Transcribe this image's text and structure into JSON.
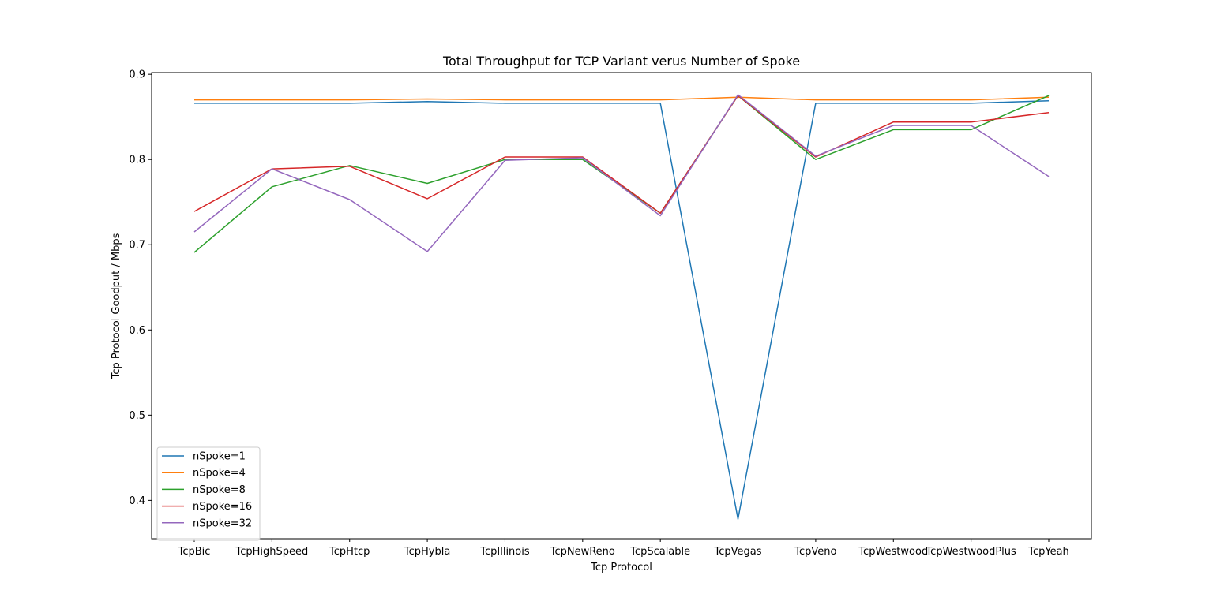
{
  "chart_data": {
    "type": "line",
    "title": "Total Throughput for TCP Variant verus Number of Spoke",
    "xlabel": "Tcp Protocol",
    "ylabel": "Tcp Protocol Goodput / Mbps",
    "categories": [
      "TcpBic",
      "TcpHighSpeed",
      "TcpHtcp",
      "TcpHybla",
      "TcpIllinois",
      "TcpNewReno",
      "TcpScalable",
      "TcpVegas",
      "TcpVeno",
      "TcpWestwood",
      "TcpWestwoodPlus",
      "TcpYeah"
    ],
    "ylim": [
      0.355,
      0.902
    ],
    "yticks": [
      0.4,
      0.5,
      0.6,
      0.7,
      0.8,
      0.9
    ],
    "ytick_labels": [
      "0.4",
      "0.5",
      "0.6",
      "0.7",
      "0.8",
      "0.9"
    ],
    "grid": false,
    "legend_position": "lower-left",
    "series": [
      {
        "name": "nSpoke=1",
        "color": "#1f77b4",
        "values": [
          0.866,
          0.866,
          0.866,
          0.868,
          0.866,
          0.866,
          0.866,
          0.378,
          0.866,
          0.866,
          0.866,
          0.869
        ]
      },
      {
        "name": "nSpoke=4",
        "color": "#ff7f0e",
        "values": [
          0.87,
          0.87,
          0.87,
          0.871,
          0.87,
          0.87,
          0.87,
          0.873,
          0.87,
          0.87,
          0.87,
          0.873
        ]
      },
      {
        "name": "nSpoke=8",
        "color": "#2ca02c",
        "values": [
          0.691,
          0.768,
          0.793,
          0.772,
          0.8,
          0.8,
          0.737,
          0.875,
          0.8,
          0.835,
          0.835,
          0.875
        ]
      },
      {
        "name": "nSpoke=16",
        "color": "#d62728",
        "values": [
          0.739,
          0.789,
          0.792,
          0.754,
          0.803,
          0.803,
          0.737,
          0.875,
          0.803,
          0.844,
          0.844,
          0.855
        ]
      },
      {
        "name": "nSpoke=32",
        "color": "#9467bd",
        "values": [
          0.715,
          0.789,
          0.753,
          0.692,
          0.799,
          0.802,
          0.734,
          0.876,
          0.804,
          0.84,
          0.84,
          0.78
        ]
      }
    ]
  }
}
